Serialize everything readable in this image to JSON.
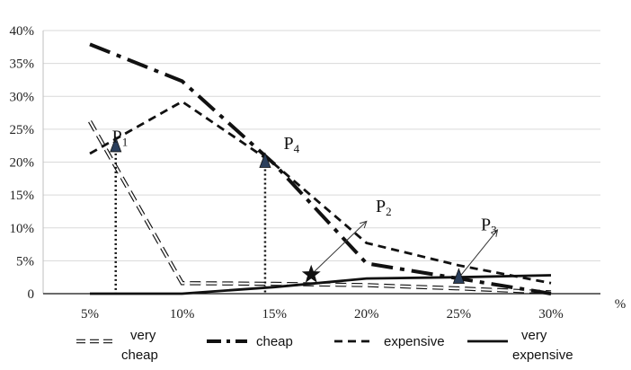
{
  "chart_data": {
    "type": "line",
    "x": [
      "5%",
      "10%",
      "15%",
      "20%",
      "25%",
      "30%"
    ],
    "x_values": [
      5,
      10,
      15,
      20,
      25,
      30
    ],
    "x_unit_label": "%",
    "y_ticks": [
      "0",
      "5%",
      "10%",
      "15%",
      "20%",
      "25%",
      "30%",
      "35%",
      "40%"
    ],
    "ylim": [
      0,
      40
    ],
    "grid": "horizontal",
    "legend_position": "bottom",
    "series": [
      {
        "name": "very cheap",
        "style": "double-dash",
        "color": "#111111",
        "points": [
          [
            5,
            26.2
          ],
          [
            10,
            1.6
          ],
          [
            15,
            1.5
          ],
          [
            20,
            1.3
          ],
          [
            25,
            0.8
          ],
          [
            30,
            0.2
          ]
        ]
      },
      {
        "name": "cheap",
        "style": "dash-dot",
        "color": "#111111",
        "points": [
          [
            5,
            37.9
          ],
          [
            10,
            32.3
          ],
          [
            15,
            19.7
          ],
          [
            20,
            4.6
          ],
          [
            25,
            2.3
          ],
          [
            30,
            0.0
          ]
        ]
      },
      {
        "name": "expensive",
        "style": "dashed",
        "color": "#111111",
        "points": [
          [
            5,
            21.3
          ],
          [
            10,
            29.2
          ],
          [
            15,
            19.7
          ],
          [
            20,
            7.7
          ],
          [
            25,
            4.3
          ],
          [
            30,
            1.6
          ]
        ]
      },
      {
        "name": "very expensive",
        "style": "solid",
        "color": "#111111",
        "points": [
          [
            5,
            0.0
          ],
          [
            10,
            0.0
          ],
          [
            15,
            1.0
          ],
          [
            20,
            2.3
          ],
          [
            25,
            2.5
          ],
          [
            30,
            2.8
          ]
        ]
      }
    ],
    "markers": [
      {
        "label": "P",
        "sub": "1",
        "x": 6.4,
        "y": 22.4,
        "shape": "triangle",
        "color": "#2b3f5c",
        "dotted_drop": true
      },
      {
        "label": "P",
        "sub": "4",
        "x": 14.5,
        "y": 20.0,
        "shape": "triangle",
        "color": "#2b3f5c",
        "dotted_drop": true
      },
      {
        "label": "P",
        "sub": "3",
        "x": 25.0,
        "y": 2.4,
        "shape": "triangle",
        "color": "#2b3f5c",
        "dotted_drop": false
      },
      {
        "label": "",
        "sub": "",
        "x": 17.0,
        "y": 2.9,
        "shape": "star",
        "color": "#111111",
        "dotted_drop": false
      }
    ],
    "callouts": [
      {
        "label": "P",
        "sub": "2",
        "from": [
          17.0,
          2.9
        ],
        "to": [
          20.0,
          11.0
        ]
      },
      {
        "label": "",
        "sub": "",
        "from": [
          25.0,
          2.4
        ],
        "to": [
          27.1,
          9.7
        ]
      }
    ],
    "point_labels": [
      {
        "label": "P",
        "sub": "1",
        "at": [
          6.2,
          23.0
        ]
      },
      {
        "label": "P",
        "sub": "4",
        "at": [
          15.5,
          22.0
        ]
      },
      {
        "label": "P",
        "sub": "2",
        "at": [
          20.5,
          12.4
        ]
      },
      {
        "label": "P",
        "sub": "3",
        "at": [
          26.2,
          9.6
        ]
      }
    ]
  }
}
